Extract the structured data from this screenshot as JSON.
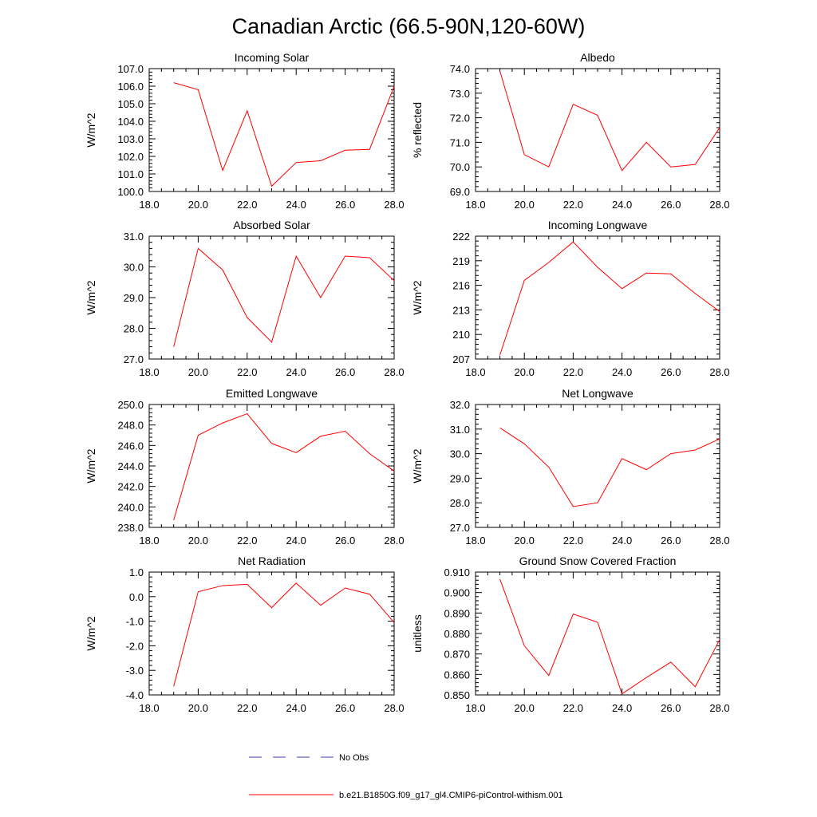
{
  "page_title": "Canadian Arctic (66.5-90N,120-60W)",
  "legend": {
    "entries": [
      {
        "label": "No Obs",
        "color": "#3b3bb0",
        "style": "dashed"
      },
      {
        "label": "b.e21.B1850G.f09_g17_gl4.CMIP6-piControl-withism.001",
        "color": "#ff0000",
        "style": "solid"
      }
    ]
  },
  "chart_data": [
    {
      "type": "line",
      "title": "Incoming Solar",
      "ylabel": "W/m^2",
      "xlabel": "",
      "xlim": [
        18,
        28
      ],
      "ylim": [
        100,
        107
      ],
      "xticks": [
        "18.0",
        "20.0",
        "22.0",
        "24.0",
        "26.0",
        "28.0"
      ],
      "yticks": [
        "100.0",
        "101.0",
        "102.0",
        "103.0",
        "104.0",
        "105.0",
        "106.0",
        "107.0"
      ],
      "series": [
        {
          "name": "b.e21.B1850G.f09_g17_gl4.CMIP6-piControl-withism.001",
          "color": "#ff0000",
          "x": [
            19,
            20,
            21,
            22,
            23,
            24,
            25,
            26,
            27,
            28
          ],
          "values": [
            106.2,
            105.8,
            101.2,
            104.6,
            100.3,
            101.65,
            101.75,
            102.35,
            102.4,
            106.0
          ]
        }
      ]
    },
    {
      "type": "line",
      "title": "Albedo",
      "ylabel": "% reflected",
      "xlabel": "",
      "xlim": [
        18,
        28
      ],
      "ylim": [
        69,
        74
      ],
      "xticks": [
        "18.0",
        "20.0",
        "22.0",
        "24.0",
        "26.0",
        "28.0"
      ],
      "yticks": [
        "69.0",
        "70.0",
        "71.0",
        "72.0",
        "73.0",
        "74.0"
      ],
      "series": [
        {
          "name": "b.e21.B1850G.f09_g17_gl4.CMIP6-piControl-withism.001",
          "color": "#ff0000",
          "x": [
            19,
            20,
            21,
            22,
            23,
            24,
            25,
            26,
            27,
            28
          ],
          "values": [
            73.9,
            70.5,
            70.0,
            72.55,
            72.1,
            69.85,
            71.0,
            70.0,
            70.1,
            71.6
          ]
        }
      ]
    },
    {
      "type": "line",
      "title": "Absorbed Solar",
      "ylabel": "W/m^2",
      "xlabel": "",
      "xlim": [
        18,
        28
      ],
      "ylim": [
        27,
        31
      ],
      "xticks": [
        "18.0",
        "20.0",
        "22.0",
        "24.0",
        "26.0",
        "28.0"
      ],
      "yticks": [
        "27.0",
        "28.0",
        "29.0",
        "30.0",
        "31.0"
      ],
      "series": [
        {
          "name": "b.e21.B1850G.f09_g17_gl4.CMIP6-piControl-withism.001",
          "color": "#ff0000",
          "x": [
            19,
            20,
            21,
            22,
            23,
            24,
            25,
            26,
            27,
            28
          ],
          "values": [
            27.4,
            30.6,
            29.9,
            28.35,
            27.55,
            30.35,
            29.0,
            30.35,
            30.3,
            29.55
          ]
        }
      ]
    },
    {
      "type": "line",
      "title": "Incoming Longwave",
      "ylabel": "W/m^2",
      "xlabel": "",
      "xlim": [
        18,
        28
      ],
      "ylim": [
        207,
        222
      ],
      "xticks": [
        "18.0",
        "20.0",
        "22.0",
        "24.0",
        "26.0",
        "28.0"
      ],
      "yticks": [
        "207",
        "210",
        "213",
        "216",
        "219",
        "222"
      ],
      "series": [
        {
          "name": "b.e21.B1850G.f09_g17_gl4.CMIP6-piControl-withism.001",
          "color": "#ff0000",
          "x": [
            19,
            20,
            21,
            22,
            23,
            24,
            25,
            26,
            27,
            28
          ],
          "values": [
            207.5,
            216.6,
            218.8,
            221.3,
            218.2,
            215.6,
            217.5,
            217.4,
            215.0,
            212.8
          ]
        }
      ]
    },
    {
      "type": "line",
      "title": "Emitted Longwave",
      "ylabel": "W/m^2",
      "xlabel": "",
      "xlim": [
        18,
        28
      ],
      "ylim": [
        238,
        250
      ],
      "xticks": [
        "18.0",
        "20.0",
        "22.0",
        "24.0",
        "26.0",
        "28.0"
      ],
      "yticks": [
        "238.0",
        "240.0",
        "242.0",
        "244.0",
        "246.0",
        "248.0",
        "250.0"
      ],
      "series": [
        {
          "name": "b.e21.B1850G.f09_g17_gl4.CMIP6-piControl-withism.001",
          "color": "#ff0000",
          "x": [
            19,
            20,
            21,
            22,
            23,
            24,
            25,
            26,
            27,
            28
          ],
          "values": [
            238.7,
            247.0,
            248.2,
            249.1,
            246.2,
            245.3,
            246.9,
            247.4,
            245.2,
            243.5
          ]
        }
      ]
    },
    {
      "type": "line",
      "title": "Net Longwave",
      "ylabel": "W/m^2",
      "xlabel": "",
      "xlim": [
        18,
        28
      ],
      "ylim": [
        27,
        32
      ],
      "xticks": [
        "18.0",
        "20.0",
        "22.0",
        "24.0",
        "26.0",
        "28.0"
      ],
      "yticks": [
        "27.0",
        "28.0",
        "29.0",
        "30.0",
        "31.0",
        "32.0"
      ],
      "series": [
        {
          "name": "b.e21.B1850G.f09_g17_gl4.CMIP6-piControl-withism.001",
          "color": "#ff0000",
          "x": [
            19,
            20,
            21,
            22,
            23,
            24,
            25,
            26,
            27,
            28
          ],
          "values": [
            31.05,
            30.4,
            29.45,
            27.85,
            28.0,
            29.8,
            29.35,
            30.0,
            30.15,
            30.6
          ]
        }
      ]
    },
    {
      "type": "line",
      "title": "Net Radiation",
      "ylabel": "W/m^2",
      "xlabel": "",
      "xlim": [
        18,
        28
      ],
      "ylim": [
        -4,
        1
      ],
      "xticks": [
        "18.0",
        "20.0",
        "22.0",
        "24.0",
        "26.0",
        "28.0"
      ],
      "yticks": [
        "-4.0",
        "-3.0",
        "-2.0",
        "-1.0",
        "0.0",
        "1.0"
      ],
      "series": [
        {
          "name": "b.e21.B1850G.f09_g17_gl4.CMIP6-piControl-withism.001",
          "color": "#ff0000",
          "x": [
            19,
            20,
            21,
            22,
            23,
            24,
            25,
            26,
            27,
            28
          ],
          "values": [
            -3.65,
            0.2,
            0.45,
            0.5,
            -0.45,
            0.55,
            -0.35,
            0.35,
            0.1,
            -1.05
          ]
        }
      ]
    },
    {
      "type": "line",
      "title": "Ground Snow Covered Fraction",
      "ylabel": "unitless",
      "xlabel": "",
      "xlim": [
        18,
        28
      ],
      "ylim": [
        0.85,
        0.91
      ],
      "xticks": [
        "18.0",
        "20.0",
        "22.0",
        "24.0",
        "26.0",
        "28.0"
      ],
      "yticks": [
        "0.850",
        "0.860",
        "0.870",
        "0.880",
        "0.890",
        "0.900",
        "0.910"
      ],
      "series": [
        {
          "name": "b.e21.B1850G.f09_g17_gl4.CMIP6-piControl-withism.001",
          "color": "#ff0000",
          "x": [
            19,
            20,
            21,
            22,
            23,
            24,
            25,
            26,
            27,
            28
          ],
          "values": [
            0.9065,
            0.874,
            0.8595,
            0.8895,
            0.8855,
            0.8505,
            0.8585,
            0.866,
            0.854,
            0.877
          ]
        }
      ]
    }
  ]
}
